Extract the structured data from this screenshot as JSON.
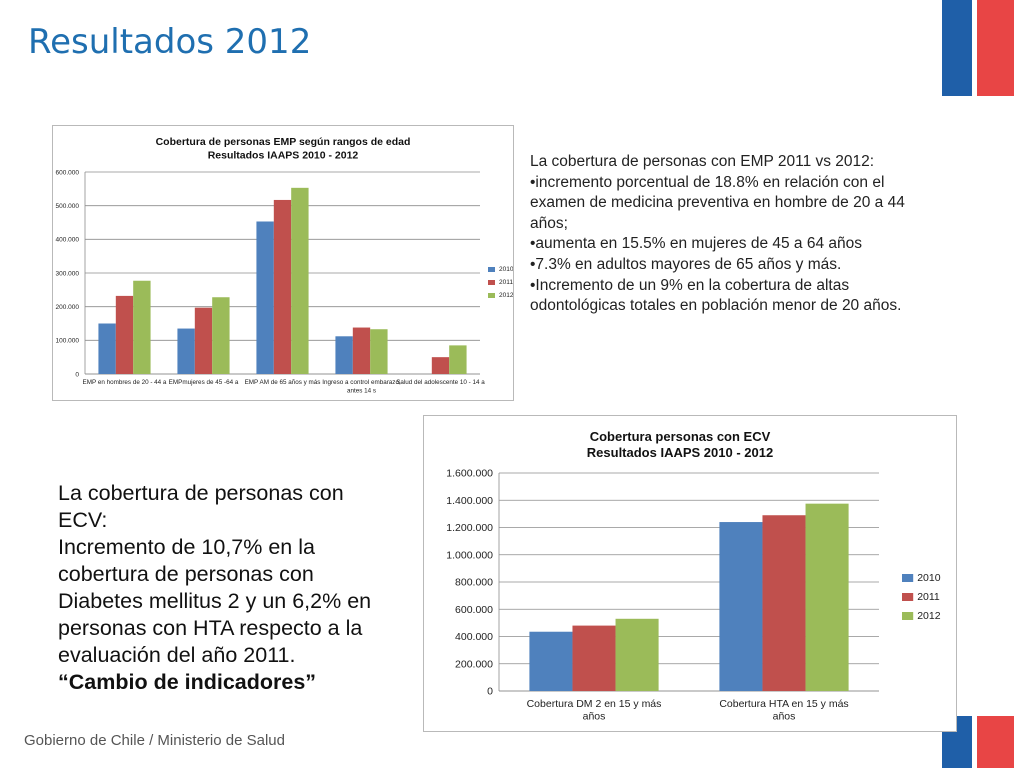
{
  "slide": {
    "title": "Resultados 2012",
    "footer": "Gobierno de Chile / Ministerio de Salud"
  },
  "right_text": {
    "lines": [
      "La cobertura de  personas con EMP 2011 vs 2012:",
      "•incremento  porcentual de 18.8% en relación con el examen de medicina preventiva en hombre de 20 a 44 años;",
      "•aumenta en 15.5%  en mujeres de 45 a 64 años",
      "•7.3% en adultos mayores de 65 años y más.",
      "•Incremento de un 9% en la cobertura de altas odontológicas totales en población menor de 20 años."
    ]
  },
  "left_text": {
    "body": "La cobertura de  personas con ECV:\nIncremento de 10,7% en la cobertura de personas con Diabetes mellitus 2 y un 6,2% en personas con HTA respecto a la evaluación del año 2011.",
    "emphasis": "“Cambio de indicadores”"
  },
  "colors": {
    "title": "#1f6fb0",
    "series_2010": "#4f81bd",
    "series_2011": "#c0504d",
    "series_2012": "#9bbb59",
    "flag_blue": "#1f5fa8",
    "flag_red": "#e84545"
  },
  "chart_data": [
    {
      "type": "bar",
      "title": "Cobertura de personas EMP según rangos de edad",
      "subtitle": "Resultados IAAPS 2010 - 2012",
      "categories": [
        "EMP en hombres de 20 - 44 a",
        "EMPmujeres de 45 -64 a",
        "EMP AM de 65  años y más",
        "Ingreso a control embarazo, antes 14 s",
        "Salud del adolescente 10 - 14 a"
      ],
      "series": [
        {
          "name": "2010",
          "values": [
            150000,
            135000,
            453000,
            112000,
            0
          ]
        },
        {
          "name": "2011",
          "values": [
            232000,
            197000,
            517000,
            138000,
            50000
          ]
        },
        {
          "name": "2012",
          "values": [
            277000,
            228000,
            553000,
            133000,
            85000
          ]
        }
      ],
      "ylim": [
        0,
        600000
      ],
      "yticks": [
        "0",
        "100.000",
        "200.000",
        "300.000",
        "400.000",
        "500.000",
        "600.000"
      ],
      "legend": "right",
      "grid": true
    },
    {
      "type": "bar",
      "title": "Cobertura  personas con ECV",
      "subtitle": "Resultados IAAPS 2010 - 2012",
      "categories": [
        "Cobertura DM 2 en  15 y más años",
        "Cobertura HTA en 15 y más años"
      ],
      "series": [
        {
          "name": "2010",
          "values": [
            435000,
            1240000
          ]
        },
        {
          "name": "2011",
          "values": [
            480000,
            1290000
          ]
        },
        {
          "name": "2012",
          "values": [
            530000,
            1375000
          ]
        }
      ],
      "ylim": [
        0,
        1600000
      ],
      "yticks": [
        "0",
        "200.000",
        "400.000",
        "600.000",
        "800.000",
        "1.000.000",
        "1.200.000",
        "1.400.000",
        "1.600.000"
      ],
      "legend": "right",
      "grid": true
    }
  ]
}
